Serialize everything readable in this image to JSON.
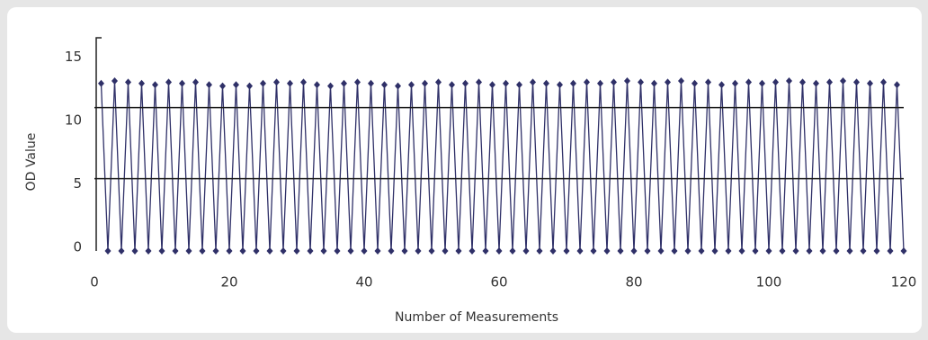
{
  "chart_data": {
    "type": "line",
    "xlabel": "Number of Measurements",
    "ylabel": "OD Value",
    "xlim": [
      0,
      120
    ],
    "xticks": [
      0,
      20,
      40,
      60,
      80,
      100,
      120
    ],
    "ylim": [
      0,
      16.8
    ],
    "yticks": [
      0,
      5,
      10,
      15
    ],
    "hlines": [
      11.3,
      5.7
    ],
    "hline_color": "#1a1a1a",
    "x": [
      1,
      2,
      3,
      4,
      5,
      6,
      7,
      8,
      9,
      10,
      11,
      12,
      13,
      14,
      15,
      16,
      17,
      18,
      19,
      20,
      21,
      22,
      23,
      24,
      25,
      26,
      27,
      28,
      29,
      30,
      31,
      32,
      33,
      34,
      35,
      36,
      37,
      38,
      39,
      40,
      41,
      42,
      43,
      44,
      45,
      46,
      47,
      48,
      49,
      50,
      51,
      52,
      53,
      54,
      55,
      56,
      57,
      58,
      59,
      60,
      61,
      62,
      63,
      64,
      65,
      66,
      67,
      68,
      69,
      70,
      71,
      72,
      73,
      74,
      75,
      76,
      77,
      78,
      79,
      80,
      81,
      82,
      83,
      84,
      85,
      86,
      87,
      88,
      89,
      90,
      91,
      92,
      93,
      94,
      95,
      96,
      97,
      98,
      99,
      100,
      101,
      102,
      103,
      104,
      105,
      106,
      107,
      108,
      109,
      110,
      111,
      112,
      113,
      114,
      115,
      116,
      117,
      118,
      119,
      120
    ],
    "series": [
      {
        "color": "#2f3068",
        "values": [
          13.2,
          0,
          13.4,
          0,
          13.3,
          0,
          13.2,
          0,
          13.1,
          0,
          13.3,
          0,
          13.2,
          0,
          13.3,
          0,
          13.1,
          0,
          13.0,
          0,
          13.1,
          0,
          13.0,
          0,
          13.2,
          0,
          13.3,
          0,
          13.2,
          0,
          13.3,
          0,
          13.1,
          0,
          13.0,
          0,
          13.2,
          0,
          13.3,
          0,
          13.2,
          0,
          13.1,
          0,
          13.0,
          0,
          13.1,
          0,
          13.2,
          0,
          13.3,
          0,
          13.1,
          0,
          13.2,
          0,
          13.3,
          0,
          13.1,
          0,
          13.2,
          0,
          13.1,
          0,
          13.3,
          0,
          13.2,
          0,
          13.1,
          0,
          13.2,
          0,
          13.3,
          0,
          13.2,
          0,
          13.3,
          0,
          13.4,
          0,
          13.3,
          0,
          13.2,
          0,
          13.3,
          0,
          13.4,
          0,
          13.2,
          0,
          13.3,
          0,
          13.1,
          0,
          13.2,
          0,
          13.3,
          0,
          13.2,
          0,
          13.3,
          0,
          13.4,
          0,
          13.3,
          0,
          13.2,
          0,
          13.3,
          0,
          13.4,
          0,
          13.3,
          0,
          13.2,
          0,
          13.3,
          0,
          13.1,
          0
        ]
      }
    ]
  }
}
